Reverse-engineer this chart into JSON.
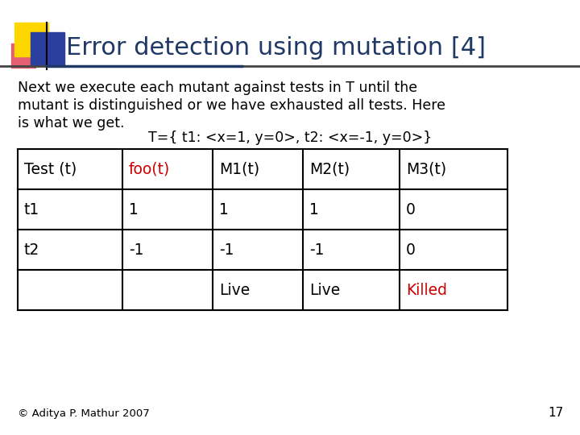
{
  "title": "Error detection using mutation [4]",
  "title_color": "#1F3864",
  "title_fontsize": 22,
  "body_text_line1": "Next we execute each mutant against tests in T until the",
  "body_text_line2": "mutant is distinguished or we have exhausted all tests. Here",
  "body_text_line3": "is what we get.",
  "centered_text": "T={ t1: <x=1, y=0>, t2: <x=-1, y=0>}",
  "body_fontsize": 12.5,
  "table_headers": [
    "Test (t)",
    "foo(t)",
    "M1(t)",
    "M2(t)",
    "M3(t)"
  ],
  "table_header_colors": [
    "black",
    "#cc0000",
    "black",
    "black",
    "black"
  ],
  "table_data": [
    [
      "t1",
      "1",
      "1",
      "1",
      "0"
    ],
    [
      "t2",
      "-1",
      "-1",
      "-1",
      "0"
    ],
    [
      "",
      "",
      "Live",
      "Live",
      "Killed"
    ]
  ],
  "table_data_colors": [
    [
      "black",
      "black",
      "black",
      "black",
      "black"
    ],
    [
      "black",
      "black",
      "black",
      "black",
      "black"
    ],
    [
      "black",
      "black",
      "black",
      "black",
      "#cc0000"
    ]
  ],
  "footer_text": "© Aditya P. Mathur 2007",
  "page_number": "17",
  "bg_color": "#ffffff",
  "decoration": {
    "yellow": "#FFD700",
    "blue": "#2B3F9E",
    "red_pink": "#E05060"
  }
}
